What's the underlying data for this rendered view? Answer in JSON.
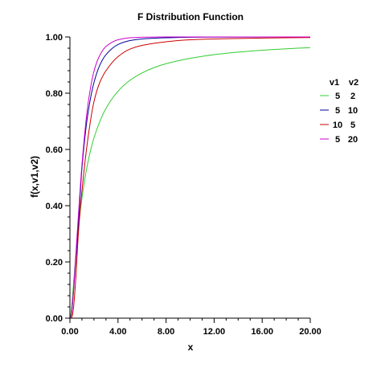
{
  "chart_data": {
    "type": "line",
    "title": "F Distribution Function",
    "xlabel": "x",
    "ylabel": "f(x,v1,v2)",
    "xlim": [
      0,
      20
    ],
    "ylim": [
      0,
      1
    ],
    "x_tick_labels": [
      "0.00",
      "4.00",
      "8.00",
      "12.00",
      "16.00",
      "20.00"
    ],
    "y_tick_labels": [
      "0.00",
      "0.20",
      "0.40",
      "0.60",
      "0.80",
      "1.00"
    ],
    "grid": false,
    "legend": {
      "placement": "right",
      "header": [
        "v1",
        "v2"
      ]
    },
    "series": [
      {
        "name": "5 2",
        "v1_label": "5",
        "v2_label": "2",
        "color": "#33cc33",
        "x": [
          0,
          0.1,
          0.2,
          0.3,
          0.5,
          0.7,
          1,
          1.5,
          2,
          2.5,
          3,
          4,
          5,
          6,
          7,
          8,
          10,
          12,
          14,
          16,
          18,
          20
        ],
        "y": [
          0,
          0.021,
          0.068,
          0.122,
          0.227,
          0.317,
          0.427,
          0.555,
          0.641,
          0.701,
          0.746,
          0.807,
          0.846,
          0.872,
          0.891,
          0.905,
          0.924,
          0.937,
          0.946,
          0.953,
          0.958,
          0.962
        ]
      },
      {
        "name": "5 10",
        "v1_label": "5",
        "v2_label": "10",
        "color": "#000099",
        "x": [
          0,
          0.1,
          0.2,
          0.3,
          0.5,
          0.7,
          1,
          1.5,
          2,
          2.5,
          3,
          4,
          5,
          6,
          8,
          10,
          20
        ],
        "y": [
          0,
          0.008,
          0.043,
          0.095,
          0.215,
          0.331,
          0.533,
          0.728,
          0.838,
          0.901,
          0.937,
          0.973,
          0.987,
          0.993,
          0.997,
          0.999,
          1.0
        ]
      },
      {
        "name": "10 5",
        "v1_label": "10",
        "v2_label": "5",
        "color": "#cc0000",
        "x": [
          0,
          0.1,
          0.2,
          0.3,
          0.5,
          0.7,
          1,
          1.5,
          2,
          2.5,
          3,
          4,
          5,
          6,
          8,
          10,
          12,
          16,
          20
        ],
        "y": [
          0,
          0.0003,
          0.009,
          0.038,
          0.149,
          0.3,
          0.452,
          0.64,
          0.77,
          0.84,
          0.88,
          0.93,
          0.957,
          0.97,
          0.983,
          0.99,
          0.993,
          0.996,
          0.998
        ]
      },
      {
        "name": "5 20",
        "v1_label": "5",
        "v2_label": "20",
        "color": "#cc00cc",
        "x": [
          0,
          0.1,
          0.2,
          0.3,
          0.5,
          0.7,
          1,
          1.5,
          2,
          2.5,
          3,
          4,
          5,
          6,
          8,
          10,
          20
        ],
        "y": [
          0,
          0.008,
          0.045,
          0.101,
          0.232,
          0.362,
          0.545,
          0.76,
          0.878,
          0.936,
          0.966,
          0.99,
          0.997,
          0.999,
          1.0,
          1.0,
          1.0
        ]
      }
    ]
  }
}
